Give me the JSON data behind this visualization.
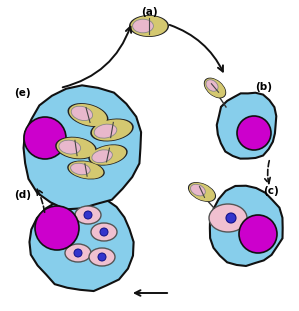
{
  "bg": "#ffffff",
  "cell_fill": "#87CEEB",
  "cell_stroke": "#111111",
  "nucleus_fill": "#CC00CC",
  "nucleus_stroke": "#111111",
  "spore_outer_fill": "#d4c870",
  "spore_outer_stroke": "#222222",
  "spore_inner_fill": "#e8d080",
  "pink_nuc_fill": "#e8b8cc",
  "pink_nuc_stroke": "#888888",
  "meront_fill": "#f0c0d0",
  "meront_stroke": "#555555",
  "blue_nuc_fill": "#3333cc",
  "blue_nuc_stroke": "#111188",
  "arrow_color": "#111111",
  "label_a": "(a)",
  "label_b": "(b)",
  "label_c": "(c)",
  "label_d": "(d)",
  "label_e": "(e)",
  "label_fontsize": 7.5,
  "figw": 2.99,
  "figh": 3.11,
  "dpi": 100
}
